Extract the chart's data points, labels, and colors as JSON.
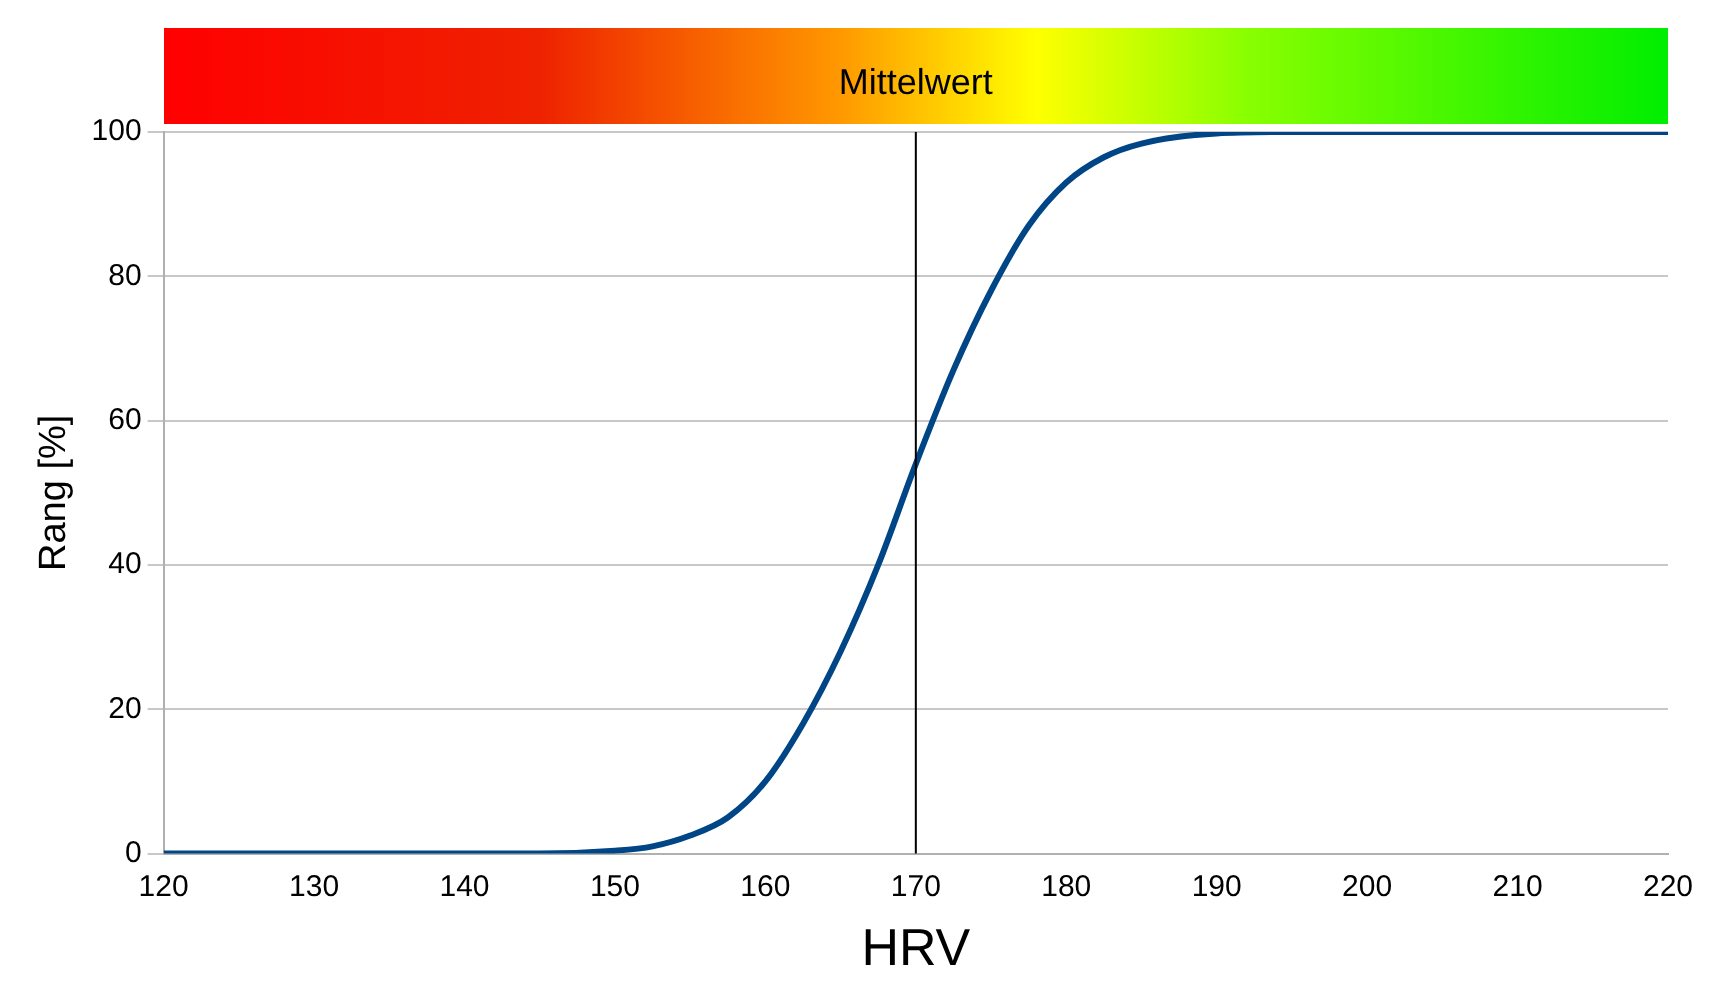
{
  "chart_data": {
    "type": "line",
    "xlabel": "HRV",
    "ylabel": "Rang [%]",
    "x": [
      120,
      130,
      140,
      145,
      150,
      152.5,
      155,
      157.5,
      160,
      162.5,
      165,
      167.5,
      170,
      172.5,
      175,
      177.5,
      180,
      182.5,
      185,
      190,
      195,
      200,
      210,
      220
    ],
    "series": [
      {
        "color": "#004586",
        "values": [
          0,
          0,
          0,
          0,
          0.4,
          1,
          2.5,
          5,
          10,
          18,
          28,
          40,
          54,
          67,
          78,
          87,
          93,
          96.5,
          98.4,
          99.8,
          100,
          100,
          100,
          100
        ]
      }
    ],
    "xlim": [
      120,
      220
    ],
    "xticks": [
      120,
      130,
      140,
      150,
      160,
      170,
      180,
      190,
      200,
      210,
      220
    ],
    "ylim": [
      0,
      100
    ],
    "yticks": [
      0,
      20,
      40,
      60,
      80,
      100
    ],
    "grid": "y",
    "legend": false,
    "marker": "none",
    "line_style": "solid",
    "ref_lines": [
      {
        "axis": "x",
        "value": 170,
        "label": "Mittelwert",
        "color": "#000000"
      }
    ]
  }
}
